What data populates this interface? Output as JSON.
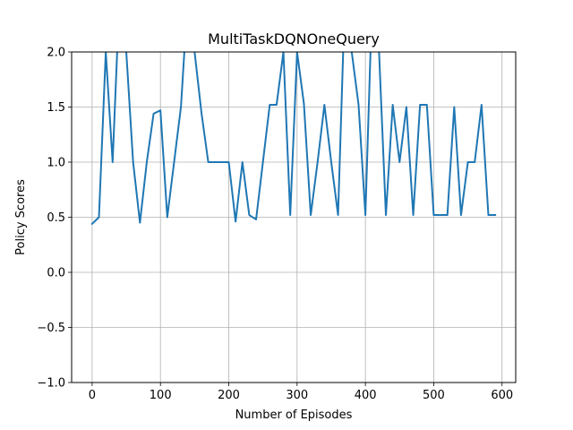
{
  "chart_data": {
    "type": "line",
    "title": "MultiTaskDQNOneQuery",
    "xlabel": "Number of Episodes",
    "ylabel": "Policy Scores",
    "xlim": [
      -30,
      620
    ],
    "ylim": [
      -1.0,
      2.0
    ],
    "xticks": [
      0,
      100,
      200,
      300,
      400,
      500,
      600
    ],
    "xtick_labels": [
      "0",
      "100",
      "200",
      "300",
      "400",
      "500",
      "600"
    ],
    "yticks": [
      -1.0,
      -0.5,
      0.0,
      0.5,
      1.0,
      1.5,
      2.0
    ],
    "ytick_labels": [
      "−1.0",
      "−0.5",
      "0.0",
      "0.5",
      "1.0",
      "1.5",
      "2.0"
    ],
    "grid": true,
    "series": [
      {
        "color": "#1f77b4",
        "x": [
          0,
          10,
          20,
          30,
          40,
          50,
          60,
          70,
          80,
          90,
          100,
          110,
          120,
          130,
          140,
          150,
          160,
          170,
          180,
          190,
          200,
          210,
          220,
          230,
          240,
          250,
          260,
          270,
          280,
          290,
          300,
          310,
          320,
          330,
          340,
          350,
          360,
          370,
          380,
          390,
          400,
          410,
          420,
          430,
          440,
          450,
          460,
          470,
          480,
          490,
          500,
          510,
          520,
          530,
          540,
          550,
          560,
          570,
          580,
          590
        ],
        "y": [
          0.44,
          0.5,
          2.0,
          1.0,
          2.5,
          2.0,
          1.0,
          0.45,
          1.0,
          1.44,
          1.47,
          0.5,
          1.0,
          1.5,
          2.5,
          2.0,
          1.45,
          1.0,
          1.0,
          1.0,
          1.0,
          0.46,
          1.0,
          0.52,
          0.48,
          1.0,
          1.52,
          1.52,
          2.0,
          0.52,
          2.0,
          1.53,
          0.52,
          1.0,
          1.52,
          1.0,
          0.52,
          2.5,
          2.0,
          1.52,
          0.52,
          2.5,
          2.0,
          0.52,
          1.52,
          1.0,
          1.5,
          0.52,
          1.52,
          1.52,
          0.52,
          0.52,
          0.52,
          1.5,
          0.52,
          1.0,
          1.0,
          1.52,
          0.52,
          0.52
        ]
      }
    ]
  }
}
